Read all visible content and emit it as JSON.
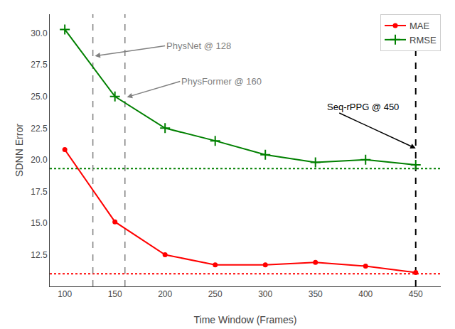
{
  "chart_data": {
    "type": "line",
    "x": [
      100,
      150,
      200,
      250,
      300,
      350,
      400,
      450
    ],
    "series": [
      {
        "name": "MAE",
        "color": "#FF0000",
        "marker": "circle",
        "values": [
          20.8,
          15.1,
          12.5,
          11.7,
          11.7,
          11.9,
          11.6,
          11.1
        ]
      },
      {
        "name": "RMSE",
        "color": "#008000",
        "marker": "plus",
        "values": [
          30.3,
          25.0,
          22.5,
          21.5,
          20.4,
          19.8,
          20.0,
          19.6
        ]
      }
    ],
    "xlabel": "Time Window (Frames)",
    "ylabel": "SDNN Error",
    "xlim": [
      85,
      475
    ],
    "ylim": [
      10.0,
      31.5
    ],
    "xticks": [
      100,
      150,
      200,
      250,
      300,
      350,
      400,
      450
    ],
    "yticks": [
      12.5,
      {
        "value": 15.0,
        "label": "15.0"
      },
      17.5,
      {
        "value": 20.0,
        "label": "20.0"
      },
      22.5,
      {
        "value": 25.0,
        "label": "25.0"
      },
      27.5,
      {
        "value": 30.0,
        "label": "30.0"
      }
    ],
    "grid": false,
    "legend": "upper right",
    "hlines": [
      {
        "y": 11.0,
        "color": "#FF0000",
        "line_style": "dotted"
      },
      {
        "y": 19.3,
        "color": "#008000",
        "line_style": "dotted"
      }
    ],
    "vlines": [
      {
        "x": 128,
        "color": "gray",
        "line_style": "dashed"
      },
      {
        "x": 160,
        "color": "gray",
        "line_style": "dashed"
      },
      {
        "x": 450,
        "color": "black",
        "line_style": "dashed"
      }
    ],
    "annotations": [
      {
        "text": "PhysNet @ 128",
        "x": 130,
        "y": 28.2,
        "text_x": 200,
        "text_y": 29.0,
        "color": "gray"
      },
      {
        "text": "PhysFormer @ 160",
        "x": 162,
        "y": 24.95,
        "text_x": 215,
        "text_y": 26.2,
        "color": "gray"
      },
      {
        "text": "Seq-rPPG @ 450",
        "x": 450,
        "y": 20.9,
        "text_x": 360,
        "text_y": 24.2,
        "color": "black"
      }
    ]
  }
}
